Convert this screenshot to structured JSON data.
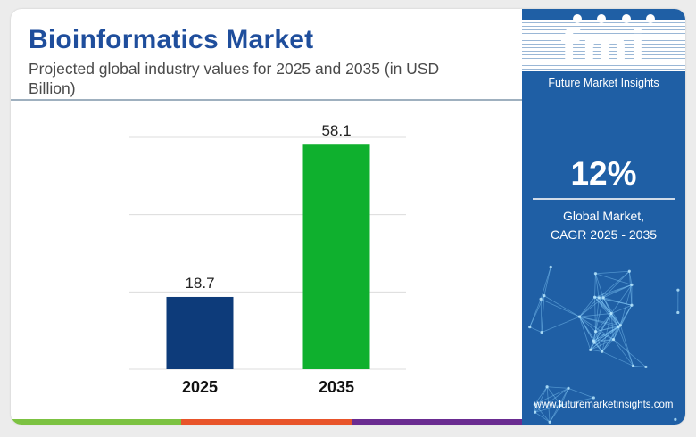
{
  "header": {
    "title": "Bioinformatics Market",
    "subtitle": "Projected global industry values for 2025 and 2035 (in USD Billion)"
  },
  "chart_data": {
    "type": "bar",
    "title": "Bioinformatics Market",
    "subtitle": "Projected global industry values for 2025 and 2035 (in USD Billion)",
    "categories": [
      "2025",
      "2035"
    ],
    "values": [
      18.7,
      58.1
    ],
    "value_labels": [
      "18.7",
      "58.1"
    ],
    "bar_colors": [
      "#0d3b7a",
      "#0fb02e"
    ],
    "ylim": [
      0,
      60
    ],
    "grid": true,
    "legend": "none"
  },
  "sidebar": {
    "logo_text": "fmi",
    "logo_subtitle": "Future Market Insights",
    "cagr_value": "12%",
    "cagr_label_line1": "Global Market,",
    "cagr_label_line2": "CAGR 2025 - 2035",
    "website": "www.futuremarketinsights.com"
  },
  "colors": {
    "title": "#1f4e9c",
    "sidebar_bg": "#1f5fa5",
    "bottom_bar": [
      "#7cc242",
      "#e8542a",
      "#6a2c91"
    ]
  }
}
